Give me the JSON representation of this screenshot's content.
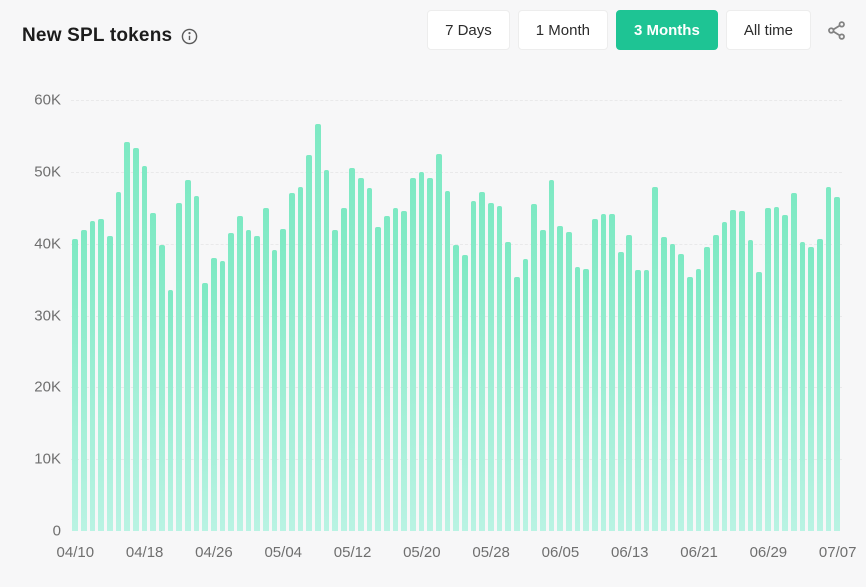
{
  "header": {
    "title": "New SPL tokens",
    "buttons": [
      {
        "label": "7 Days",
        "active": false
      },
      {
        "label": "1 Month",
        "active": false
      },
      {
        "label": "3 Months",
        "active": true
      },
      {
        "label": "All time",
        "active": false
      }
    ]
  },
  "colors": {
    "accent": "#1ec494",
    "bar_top": "#7de9c3",
    "bar_bottom": "#b9f3e3",
    "background": "#f7f7f8",
    "axis_text": "#6f6f6f",
    "title_text": "#1c1c1c"
  },
  "chart_data": {
    "type": "bar",
    "title": "New SPL tokens",
    "xlabel": "",
    "ylabel": "",
    "ylim": [
      0,
      60000
    ],
    "grid": "horizontal-dashed",
    "legend": "none",
    "x_tick_every": 8,
    "y_ticks": [
      {
        "value": 0,
        "label": "0"
      },
      {
        "value": 10000,
        "label": "10K"
      },
      {
        "value": 20000,
        "label": "20K"
      },
      {
        "value": 30000,
        "label": "30K"
      },
      {
        "value": 40000,
        "label": "40K"
      },
      {
        "value": 50000,
        "label": "50K"
      },
      {
        "value": 60000,
        "label": "60K"
      }
    ],
    "categories": [
      "04/10",
      "04/11",
      "04/12",
      "04/13",
      "04/14",
      "04/15",
      "04/16",
      "04/17",
      "04/18",
      "04/19",
      "04/20",
      "04/21",
      "04/22",
      "04/23",
      "04/24",
      "04/25",
      "04/26",
      "04/27",
      "04/28",
      "04/29",
      "04/30",
      "05/01",
      "05/02",
      "05/03",
      "05/04",
      "05/05",
      "05/06",
      "05/07",
      "05/08",
      "05/09",
      "05/10",
      "05/11",
      "05/12",
      "05/13",
      "05/14",
      "05/15",
      "05/16",
      "05/17",
      "05/18",
      "05/19",
      "05/20",
      "05/21",
      "05/22",
      "05/23",
      "05/24",
      "05/25",
      "05/26",
      "05/27",
      "05/28",
      "05/29",
      "05/30",
      "05/31",
      "06/01",
      "06/02",
      "06/03",
      "06/04",
      "06/05",
      "06/06",
      "06/07",
      "06/08",
      "06/09",
      "06/10",
      "06/11",
      "06/12",
      "06/13",
      "06/14",
      "06/15",
      "06/16",
      "06/17",
      "06/18",
      "06/19",
      "06/20",
      "06/21",
      "06/22",
      "06/23",
      "06/24",
      "06/25",
      "06/26",
      "06/27",
      "06/28",
      "06/29",
      "06/30",
      "07/01",
      "07/02",
      "07/03",
      "07/04",
      "07/05",
      "07/06",
      "07/07"
    ],
    "values": [
      40600,
      41900,
      43100,
      43500,
      41100,
      47200,
      54200,
      53300,
      50800,
      44300,
      39800,
      33600,
      45600,
      48900,
      46700,
      34500,
      38000,
      37600,
      41500,
      43800,
      41900,
      41100,
      45000,
      39100,
      42100,
      47000,
      47900,
      52300,
      56700,
      50200,
      41900,
      44900,
      50500,
      49200,
      47700,
      42300,
      43900,
      45000,
      44500,
      49200,
      50000,
      49100,
      52500,
      47400,
      39800,
      38400,
      46000,
      47200,
      45600,
      45300,
      40200,
      35300,
      37900,
      45500,
      41900,
      48900,
      42500,
      41600,
      36700,
      36500,
      43500,
      44200,
      44100,
      38800,
      41200,
      36300,
      36400,
      47900,
      40900,
      40000,
      38600,
      35300,
      36500,
      39500,
      41200,
      43000,
      44700,
      44600,
      40500,
      36000,
      44900,
      45100,
      44000,
      47000,
      40200,
      39500,
      40700,
      47900,
      46500
    ]
  }
}
